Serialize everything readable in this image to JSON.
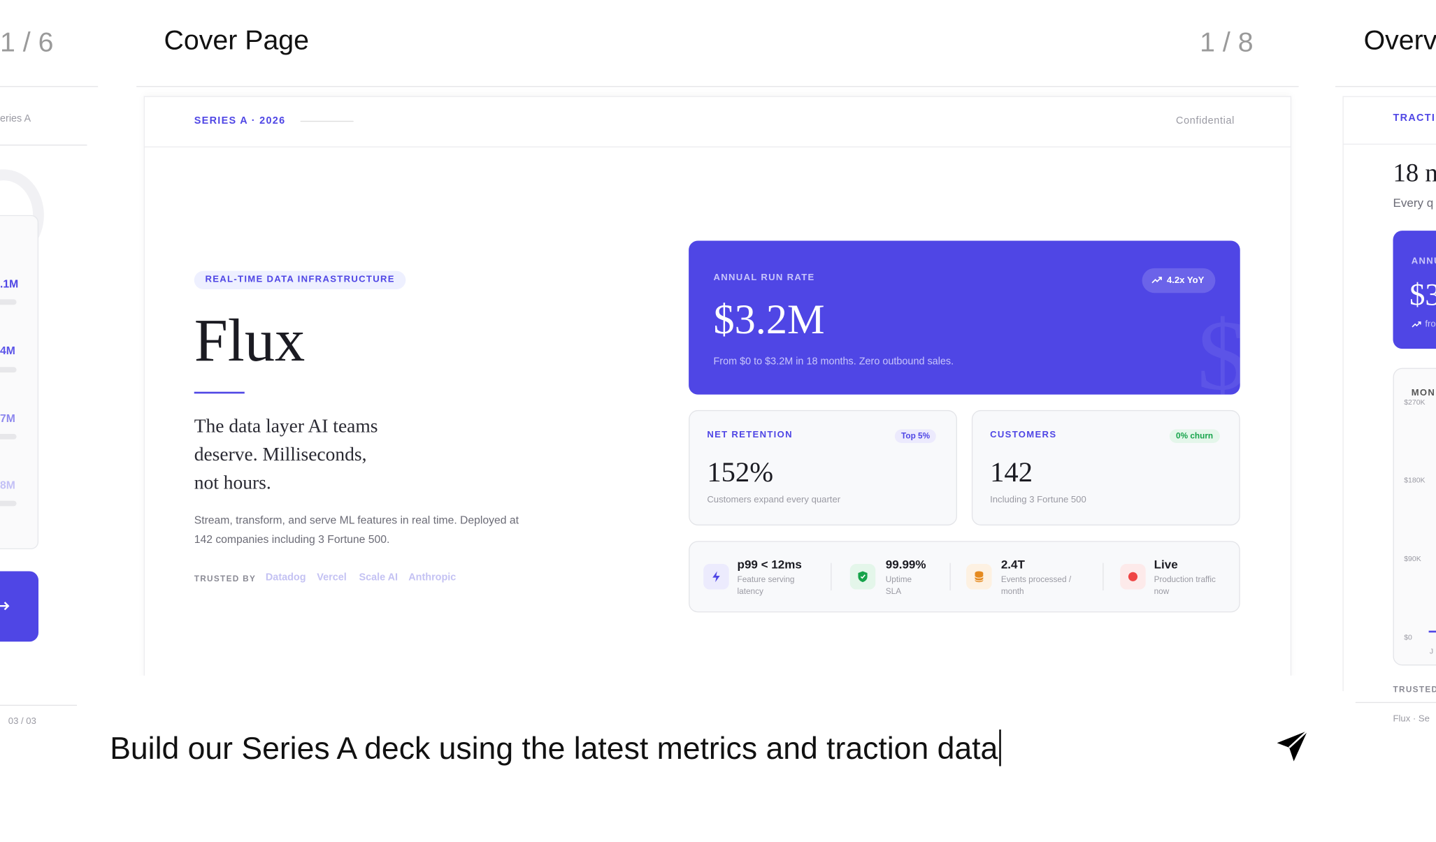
{
  "left_slide": {
    "counter": "1 / 6",
    "eyebrow": "eries A",
    "values": [
      ".1M",
      "4M",
      "7M",
      "8M"
    ],
    "footer": "03 / 03"
  },
  "main_slide": {
    "title": "Cover Page",
    "counter": "1 / 8",
    "eyebrow": "SERIES A · 2026",
    "confidential": "Confidential",
    "tag": "REAL-TIME DATA INFRASTRUCTURE",
    "name": "Flux",
    "tagline_lines": [
      "The data layer AI teams",
      "deserve. Milliseconds,",
      "not hours."
    ],
    "description_lines": [
      "Stream, transform, and serve ML features in real time. Deployed at",
      "142 companies including 3 Fortune 500."
    ],
    "trusted_by": {
      "label": "TRUSTED BY",
      "logos": [
        "Datadog",
        "Vercel",
        "Scale AI",
        "Anthropic"
      ]
    },
    "arr_card": {
      "label": "ANNUAL RUN RATE",
      "badge": "4.2x YoY",
      "value": "$3.2M",
      "note": "From $0 to $3.2M in 18 months. Zero outbound sales.",
      "watermark": "$"
    },
    "cards": [
      {
        "label": "NET RETENTION",
        "badge": "Top 5%",
        "value": "152%",
        "note": "Customers expand every quarter"
      },
      {
        "label": "CUSTOMERS",
        "badge": "0% churn",
        "value": "142",
        "note": "Including 3 Fortune 500"
      }
    ],
    "stats": [
      {
        "value": "p99 < 12ms",
        "label_lines": [
          "Feature serving",
          "latency"
        ]
      },
      {
        "value": "99.99%",
        "label_lines": [
          "Uptime",
          "SLA"
        ]
      },
      {
        "value": "2.4T",
        "label_lines": [
          "Events processed /",
          "month"
        ]
      },
      {
        "value": "Live",
        "label_lines": [
          "Production traffic",
          "now"
        ]
      }
    ]
  },
  "right_slide": {
    "title": "Overv",
    "eyebrow": "TRACTI",
    "headline": "18 n",
    "subline": "Every q",
    "card_label": "ANNU",
    "card_value": "$3",
    "card_note": "fro",
    "chart_label": "MON",
    "chart_ticks": [
      "$270K",
      "$180K",
      "$90K",
      "$0"
    ],
    "chart_x": "J",
    "trusted": "TRUSTED",
    "footer": "Flux · Se"
  },
  "prompt": {
    "text": "Build our Series A deck using the latest metrics and traction data"
  }
}
